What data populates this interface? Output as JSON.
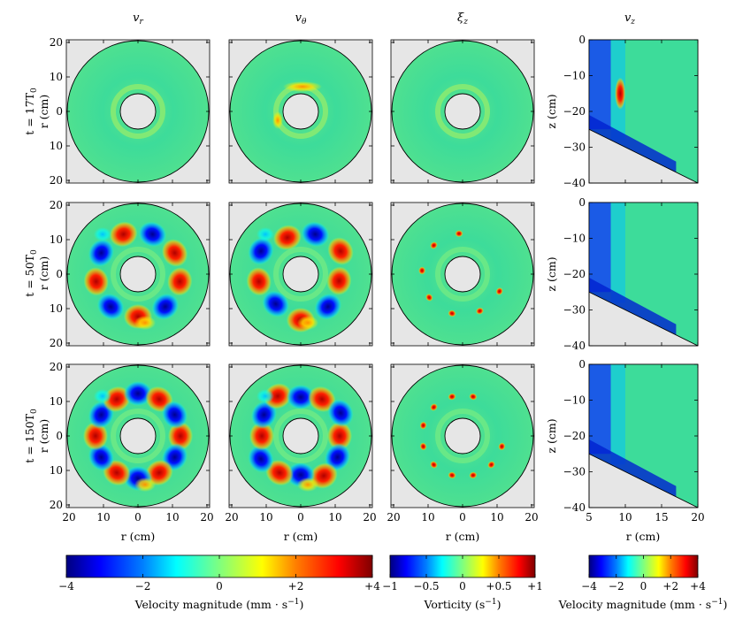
{
  "columns": [
    {
      "symbol": "v",
      "sub": "r"
    },
    {
      "symbol": "v",
      "sub": "θ"
    },
    {
      "symbol": "ξ",
      "sub": "z"
    },
    {
      "symbol": "v",
      "sub": "z"
    }
  ],
  "rows": [
    {
      "time_label": "t = 17T",
      "time_sub": "0",
      "axis_label": "r (cm)"
    },
    {
      "time_label": "t = 50T",
      "time_sub": "0",
      "axis_label": "r (cm)"
    },
    {
      "time_label": "t = 150T",
      "time_sub": "0",
      "axis_label": "r (cm)"
    }
  ],
  "chart_data": [
    {
      "type": "heatmap",
      "panel": "polar-maps",
      "y_ticks": [
        "20",
        "10",
        "0",
        "10",
        "20"
      ],
      "x_ticks": [
        "20",
        "10",
        "0",
        "10",
        "20"
      ],
      "xlabel": "r (cm)",
      "ylabel": "r (cm)",
      "vortex_counts": {
        "t17": 0,
        "t50": 9,
        "t150": 12
      }
    },
    {
      "type": "heatmap",
      "panel": "vertical-section",
      "xlabel": "r (cm)",
      "ylabel": "z (cm)",
      "x_ticks": [
        "5",
        "10",
        "15",
        "20"
      ],
      "y_ticks": [
        "0",
        "−10",
        "−20",
        "−30",
        "−40"
      ],
      "xlim": [
        5,
        20
      ],
      "ylim": [
        -40,
        0
      ]
    }
  ],
  "colorbars": [
    {
      "ticks": [
        "−4",
        "−2",
        "0",
        "+2",
        "+4"
      ],
      "label": "Velocity magnitude (mm · s",
      "exp": "−1",
      "close": ")"
    },
    {
      "ticks": [
        "−1",
        "−0.5",
        "0",
        "+0.5",
        "+1"
      ],
      "label": "Vorticity (s",
      "exp": "−1",
      "close": ")"
    },
    {
      "ticks": [
        "−4",
        "−2",
        "0",
        "+2",
        "+4"
      ],
      "label": "Velocity magnitude (mm · s",
      "exp": "−1",
      "close": ")"
    }
  ],
  "colors": {
    "background_grey": "#e6e6e6",
    "field_base": "#3ddc9a",
    "jet_stops": [
      "#00007f",
      "#0000ff",
      "#007fff",
      "#00ffff",
      "#7fff7f",
      "#ffff00",
      "#ff7f00",
      "#ff0000",
      "#7f0000"
    ]
  }
}
